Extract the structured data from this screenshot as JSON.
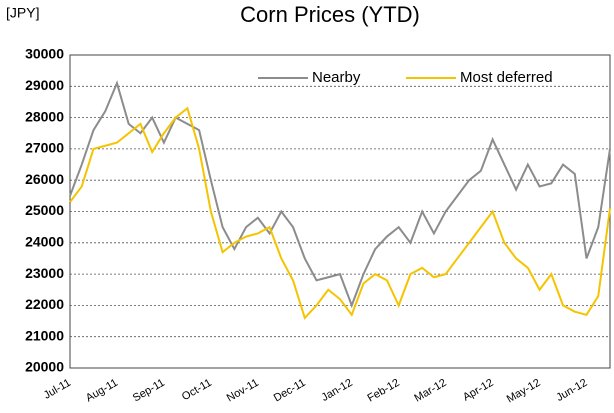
{
  "chart_data": {
    "type": "line",
    "title": "Corn Prices (YTD)",
    "y_label": "[JPY]",
    "categories": [
      "Jul-11",
      null,
      null,
      null,
      "Aug-11",
      null,
      null,
      null,
      "Sep-11",
      null,
      null,
      null,
      "Oct-11",
      null,
      null,
      null,
      "Nov-11",
      null,
      null,
      null,
      "Dec-11",
      null,
      null,
      null,
      "Jan-12",
      null,
      null,
      null,
      "Feb-12",
      null,
      null,
      null,
      "Mar-12",
      null,
      null,
      null,
      "Apr-12",
      null,
      null,
      null,
      "May-12",
      null,
      null,
      null,
      "Jun-12",
      null,
      null
    ],
    "series": [
      {
        "name": "Nearby",
        "color": "#8c8c8c",
        "values": [
          25500,
          26500,
          27600,
          28200,
          29100,
          27800,
          27500,
          28000,
          27200,
          28000,
          27800,
          27600,
          26000,
          24500,
          23800,
          24500,
          24800,
          24300,
          25000,
          24500,
          23500,
          22800,
          22900,
          23000,
          22000,
          23000,
          23800,
          24200,
          24500,
          24000,
          25000,
          24300,
          25000,
          25500,
          26000,
          26300,
          27300,
          26500,
          25700,
          26500,
          25800,
          25900,
          26500,
          26200,
          23500,
          24500,
          27000
        ]
      },
      {
        "name": "Most deferred",
        "color": "#f5c400",
        "values": [
          25300,
          25800,
          27000,
          27100,
          27200,
          27500,
          27800,
          26900,
          27500,
          28000,
          28300,
          27000,
          25000,
          23700,
          24000,
          24200,
          24300,
          24500,
          23500,
          22800,
          21600,
          22000,
          22500,
          22200,
          21700,
          22700,
          23000,
          22800,
          22000,
          23000,
          23200,
          22900,
          23000,
          23500,
          24000,
          24500,
          25000,
          24000,
          23500,
          23200,
          22500,
          23000,
          22000,
          21800,
          21700,
          22300,
          25100
        ]
      }
    ],
    "ylim": [
      20000,
      30000
    ],
    "yticks": [
      20000,
      21000,
      22000,
      23000,
      24000,
      25000,
      26000,
      27000,
      28000,
      29000,
      30000
    ],
    "grid": true,
    "legend": "top-right"
  }
}
